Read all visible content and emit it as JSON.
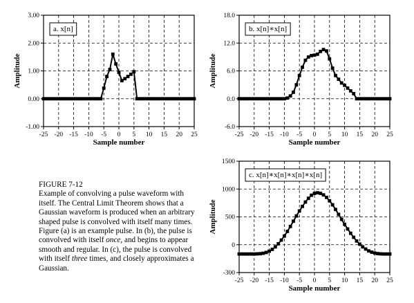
{
  "figure": {
    "label": "FIGURE 7-12",
    "caption_parts": [
      "Example of convolving a pulse waveform with itself. The Central Limit Theorem shows that a Gaussian waveform is produced when an arbitrary shaped pulse is convolved with itself many times.  Figure (a) is an example pulse.  In (b), the pulse is convolved with itself ",
      "once",
      ", and begins to appear smooth and regular.  In (c), the pulse is convolved with itself ",
      "three",
      " times, and closely approximates a Gaussian."
    ]
  },
  "chart_data": [
    {
      "type": "line",
      "panel_label": "a. x[n]",
      "xlabel": "Sample number",
      "ylabel": "Amplitude",
      "xlim": [
        -25,
        25
      ],
      "ylim": [
        -1.0,
        3.0
      ],
      "x_ticks": [
        "-25",
        "-20",
        "-15",
        "-10",
        "-5",
        "0",
        "5",
        "10",
        "15",
        "20",
        "25"
      ],
      "y_ticks": [
        "-1.00",
        "0.00",
        "1.00",
        "2.00",
        "3.00"
      ],
      "grid": "dashed",
      "series": [
        {
          "x": [
            -25,
            -24,
            -23,
            -22,
            -21,
            -20,
            -19,
            -18,
            -17,
            -16,
            -15,
            -14,
            -13,
            -12,
            -11,
            -10,
            -9,
            -8,
            -7,
            -6,
            -5,
            -4,
            -3,
            -2,
            -1,
            0,
            1,
            2,
            3,
            4,
            5,
            6,
            7,
            8,
            9,
            10,
            11,
            12,
            13,
            14,
            15,
            16,
            17,
            18,
            19,
            20,
            21,
            22,
            23,
            24,
            25
          ],
          "y": [
            0,
            0,
            0,
            0,
            0,
            0,
            0,
            0,
            0,
            0,
            0,
            0,
            0,
            0,
            0,
            0,
            0,
            0,
            0,
            0,
            0.38,
            0.8,
            1.05,
            1.6,
            1.25,
            0.95,
            0.65,
            0.72,
            0.8,
            0.88,
            0.97,
            0,
            0,
            0,
            0,
            0,
            0,
            0,
            0,
            0,
            0,
            0,
            0,
            0,
            0,
            0,
            0,
            0,
            0,
            0,
            0
          ]
        }
      ]
    },
    {
      "type": "line",
      "panel_label": "b. x[n]∗x[n]",
      "xlabel": "Sample number",
      "ylabel": "Amplitude",
      "xlim": [
        -25,
        25
      ],
      "ylim": [
        -6.0,
        18.0
      ],
      "x_ticks": [
        "-25",
        "-20",
        "-15",
        "-10",
        "-5",
        "0",
        "5",
        "10",
        "15",
        "20",
        "25"
      ],
      "y_ticks": [
        "-6.0",
        "0.0",
        "6.0",
        "12.0",
        "18.0"
      ],
      "grid": "dashed",
      "series": [
        {
          "x": [
            -25,
            -24,
            -23,
            -22,
            -21,
            -20,
            -19,
            -18,
            -17,
            -16,
            -15,
            -14,
            -13,
            -12,
            -11,
            -10,
            -9,
            -8,
            -7,
            -6,
            -5,
            -4,
            -3,
            -2,
            -1,
            0,
            1,
            2,
            3,
            4,
            5,
            6,
            7,
            8,
            9,
            10,
            11,
            12,
            13,
            14,
            15,
            16,
            17,
            18,
            19,
            20,
            21,
            22,
            23,
            24,
            25
          ],
          "y": [
            0,
            0,
            0,
            0,
            0,
            0,
            0,
            0,
            0,
            0,
            0,
            0,
            0,
            0,
            0,
            0,
            0.15,
            0.6,
            1.4,
            3.0,
            5.0,
            6.8,
            8.3,
            9.0,
            9.3,
            9.4,
            9.6,
            10.2,
            10.6,
            10.3,
            8.6,
            6.6,
            5.0,
            4.2,
            3.4,
            2.9,
            2.3,
            1.7,
            1.1,
            0,
            0,
            0,
            0,
            0,
            0,
            0,
            0,
            0,
            0,
            0,
            0
          ]
        }
      ]
    },
    {
      "type": "line",
      "panel_label": "c. x[n]∗x[n]∗x[n]∗x[n]",
      "xlabel": "Sample number",
      "ylabel": "Amplitude",
      "xlim": [
        -25,
        25
      ],
      "ylim": [
        -300,
        1500
      ],
      "x_ticks": [
        "-25",
        "-20",
        "-15",
        "-10",
        "-5",
        "0",
        "5",
        "10",
        "15",
        "20",
        "25"
      ],
      "y_ticks": [
        "-300",
        "0",
        "500",
        "1000",
        "1500"
      ],
      "grid": "dashed",
      "series": [
        {
          "x": [
            -25,
            -24,
            -23,
            -22,
            -21,
            -20,
            -19,
            -18,
            -17,
            -16,
            -15,
            -14,
            -13,
            -12,
            -11,
            -10,
            -9,
            -8,
            -7,
            -6,
            -5,
            -4,
            -3,
            -2,
            -1,
            0,
            1,
            2,
            3,
            4,
            5,
            6,
            7,
            8,
            9,
            10,
            11,
            12,
            13,
            14,
            15,
            16,
            17,
            18,
            19,
            20,
            21,
            22,
            23,
            24,
            25
          ],
          "y": [
            0,
            0,
            0,
            0,
            0,
            0,
            2,
            5,
            12,
            25,
            45,
            75,
            115,
            165,
            225,
            290,
            365,
            445,
            530,
            615,
            695,
            770,
            840,
            900,
            950,
            980,
            990,
            980,
            955,
            915,
            860,
            795,
            720,
            640,
            560,
            480,
            405,
            335,
            270,
            210,
            160,
            115,
            80,
            50,
            30,
            15,
            6,
            2,
            0,
            0,
            0
          ]
        }
      ]
    }
  ]
}
